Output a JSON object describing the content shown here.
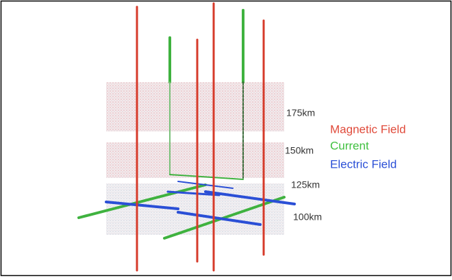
{
  "altitude_labels": [
    "175km",
    "150km",
    "125km",
    "100km"
  ],
  "legend": [
    "Magnetic Field",
    "Current",
    "Electric Field"
  ]
}
